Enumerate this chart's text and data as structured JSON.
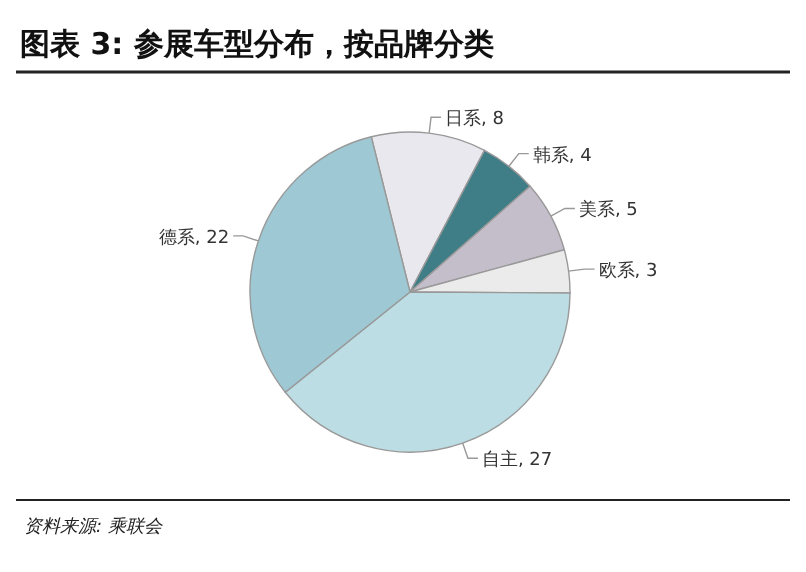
{
  "chart_data": {
    "type": "pie",
    "title": "图表 3: 参展车型分布，按品牌分类",
    "categories": [
      "日系",
      "韩系",
      "美系",
      "欧系",
      "自主",
      "德系"
    ],
    "values": [
      8,
      4,
      5,
      3,
      27,
      22
    ],
    "value_labels": [
      ", 8",
      ", 4",
      ", 5",
      ", 3",
      ", 27",
      ", 22"
    ],
    "colors": [
      "#e9e8ee",
      "#3f7d87",
      "#c4bdca",
      "#ebebeb",
      "#bcdde3",
      "#9ec8d3"
    ],
    "annotations": [
      "资料来源: 乘联会"
    ]
  }
}
